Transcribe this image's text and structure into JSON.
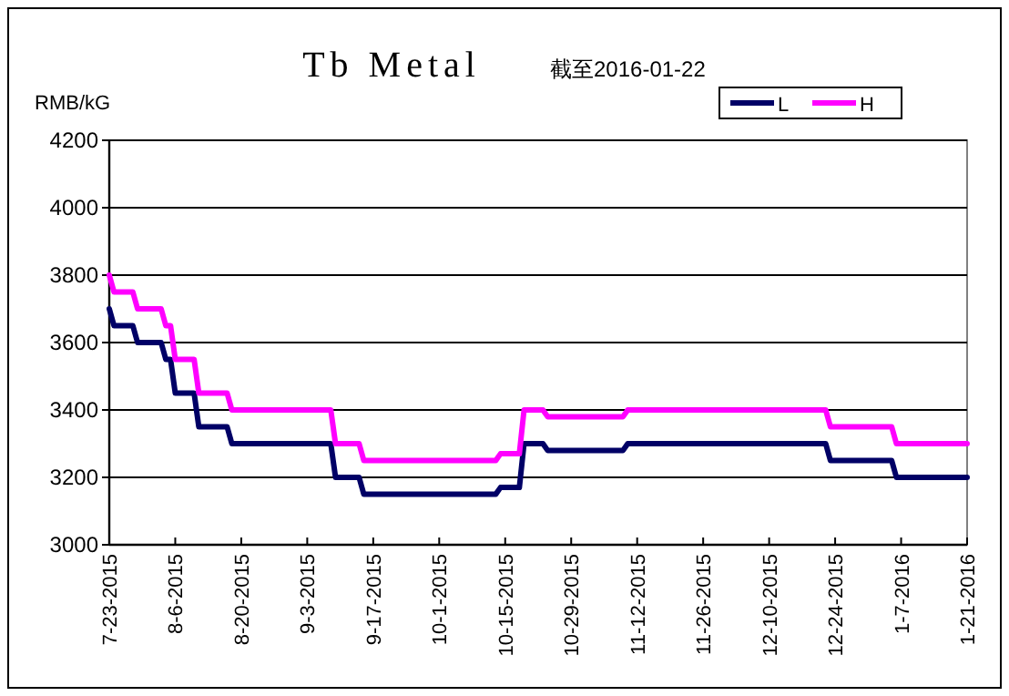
{
  "chart_data": {
    "type": "line",
    "title": "Tb Metal",
    "subtitle": "截至2016-01-22",
    "ylabel": "RMB/kG",
    "x": [
      "2015-07-23",
      "2015-07-24",
      "2015-07-28",
      "2015-07-29",
      "2015-08-03",
      "2015-08-04",
      "2015-08-05",
      "2015-08-06",
      "2015-08-10",
      "2015-08-11",
      "2015-08-17",
      "2015-08-18",
      "2015-09-08",
      "2015-09-09",
      "2015-09-14",
      "2015-09-15",
      "2015-10-13",
      "2015-10-14",
      "2015-10-18",
      "2015-10-19",
      "2015-10-23",
      "2015-10-24",
      "2015-11-09",
      "2015-11-10",
      "2015-12-22",
      "2015-12-23",
      "2016-01-05",
      "2016-01-06",
      "2016-01-21"
    ],
    "series": [
      {
        "name": "L",
        "color": "#000066",
        "values": [
          3700,
          3650,
          3650,
          3600,
          3600,
          3550,
          3550,
          3450,
          3450,
          3350,
          3350,
          3300,
          3300,
          3200,
          3200,
          3150,
          3150,
          3170,
          3170,
          3300,
          3300,
          3280,
          3280,
          3300,
          3300,
          3250,
          3250,
          3200,
          3200
        ]
      },
      {
        "name": "H",
        "color": "#ff00ff",
        "values": [
          3800,
          3750,
          3750,
          3700,
          3700,
          3650,
          3650,
          3550,
          3550,
          3450,
          3450,
          3400,
          3400,
          3300,
          3300,
          3250,
          3250,
          3270,
          3270,
          3400,
          3400,
          3380,
          3380,
          3400,
          3400,
          3350,
          3350,
          3300,
          3300
        ]
      }
    ],
    "xlim": [
      "2015-07-23",
      "2016-01-21"
    ],
    "xticks": [
      {
        "value": "2015-07-23",
        "label": "7-23-2015"
      },
      {
        "value": "2015-08-06",
        "label": "8-6-2015"
      },
      {
        "value": "2015-08-20",
        "label": "8-20-2015"
      },
      {
        "value": "2015-09-03",
        "label": "9-3-2015"
      },
      {
        "value": "2015-09-17",
        "label": "9-17-2015"
      },
      {
        "value": "2015-10-01",
        "label": "10-1-2015"
      },
      {
        "value": "2015-10-15",
        "label": "10-15-2015"
      },
      {
        "value": "2015-10-29",
        "label": "10-29-2015"
      },
      {
        "value": "2015-11-12",
        "label": "11-12-2015"
      },
      {
        "value": "2015-11-26",
        "label": "11-26-2015"
      },
      {
        "value": "2015-12-10",
        "label": "12-10-2015"
      },
      {
        "value": "2015-12-24",
        "label": "12-24-2015"
      },
      {
        "value": "2016-01-07",
        "label": "1-7-2016"
      },
      {
        "value": "2016-01-21",
        "label": "1-21-2016"
      }
    ],
    "ylim": [
      3000,
      4200
    ],
    "yticks": [
      3000,
      3200,
      3400,
      3600,
      3800,
      4000,
      4200
    ],
    "grid": "y",
    "legend": "top right"
  }
}
